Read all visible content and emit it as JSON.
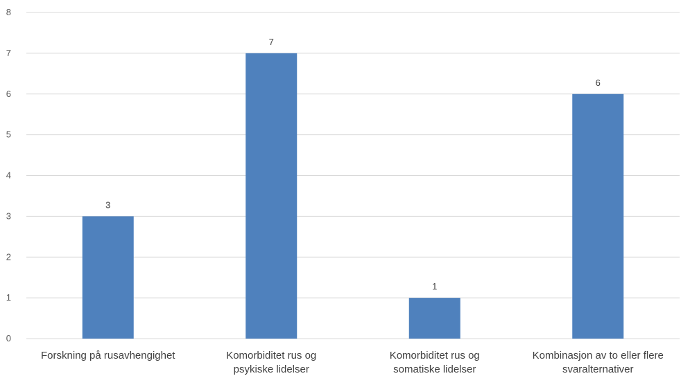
{
  "chart_data": {
    "type": "bar",
    "title": "",
    "xlabel": "",
    "ylabel": "",
    "categories": [
      [
        "Forskning på rusavhengighet"
      ],
      [
        "Komorbiditet rus og",
        "psykiske lidelser"
      ],
      [
        "Komorbiditet rus og",
        "somatiske lidelser"
      ],
      [
        "Kombinasjon av to eller flere",
        "svaralternativer"
      ]
    ],
    "values": [
      3,
      7,
      1,
      6
    ],
    "data_labels": [
      "3",
      "7",
      "1",
      "6"
    ],
    "yticks": [
      "0",
      "1",
      "2",
      "3",
      "4",
      "5",
      "6",
      "7",
      "8"
    ],
    "ylim": [
      0,
      8
    ],
    "grid": true,
    "legend": "none",
    "bar_color": "#4f81bd"
  }
}
